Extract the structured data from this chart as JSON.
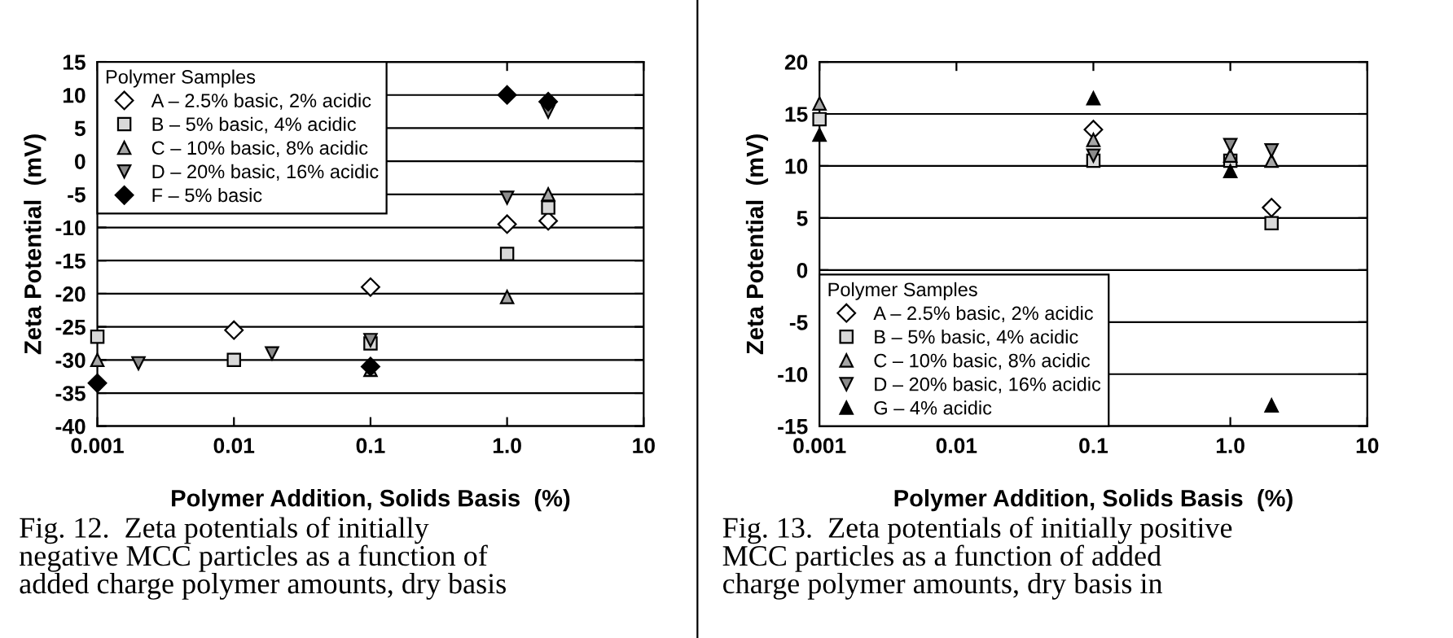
{
  "chart_data": [
    {
      "type": "scatter",
      "xlabel": "Polymer Addition, Solids Basis  (%)",
      "ylabel": "Zeta Potential  (mV)",
      "legend_title": "Polymer Samples",
      "legend": "top left",
      "log": "x",
      "grid": "y",
      "xlim": [
        0.001,
        10
      ],
      "xticks": [
        0.001,
        0.01,
        0.1,
        {
          "value": 1,
          "label": "1.0"
        },
        10
      ],
      "ylim": [
        -40,
        15
      ],
      "yticks": [
        -40,
        -35,
        -30,
        -25,
        -20,
        -15,
        -10,
        -5,
        0,
        5,
        10,
        15
      ],
      "series": [
        {
          "name": "A – 2.5% basic, 2% acidic",
          "color": "#ffffff",
          "marker": "diamond",
          "x": [
            0.01,
            0.1,
            1,
            2
          ],
          "values": [
            -25.5,
            -19,
            -9.5,
            -9
          ]
        },
        {
          "name": "B – 5% basic, 4% acidic",
          "color": "#d9d9d9",
          "marker": "square",
          "x": [
            0.001,
            0.01,
            0.1,
            1,
            2
          ],
          "values": [
            -26.5,
            -30,
            -27.5,
            -14,
            -7
          ]
        },
        {
          "name": "C – 10% basic, 8% acidic",
          "color": "#a6a6a6",
          "marker": "triangle",
          "x": [
            0.001,
            0.1,
            1,
            2
          ],
          "values": [
            -30,
            -31.5,
            -20.5,
            -5
          ]
        },
        {
          "name": "D – 20% basic, 16% acidic",
          "color": "#8c8c8c",
          "marker": "triangle_down",
          "x": [
            0.002,
            0.019,
            0.1,
            1,
            2
          ],
          "values": [
            -30.5,
            -29,
            -27,
            -5.5,
            7.5
          ]
        },
        {
          "name": "F – 5% basic",
          "color": "#000000",
          "marker": "diamond",
          "x": [
            0.001,
            0.1,
            1,
            2
          ],
          "values": [
            -33.5,
            -31,
            10,
            9
          ]
        }
      ],
      "annotations": [
        "Fig. 12.  Zeta potentials of initially\nnegative MCC particles as a function of\nadded charge polymer amounts, dry basis"
      ]
    },
    {
      "type": "scatter",
      "xlabel": "Polymer Addition, Solids Basis  (%)",
      "ylabel": "Zeta Potential  (mV)",
      "legend_title": "Polymer Samples",
      "legend": "bottom left",
      "log": "x",
      "grid": "y",
      "xlim": [
        0.001,
        10
      ],
      "xticks": [
        0.001,
        0.01,
        0.1,
        {
          "value": 1,
          "label": "1.0"
        },
        10
      ],
      "ylim": [
        -15,
        20
      ],
      "yticks": [
        -15,
        -10,
        -5,
        0,
        5,
        10,
        15,
        20
      ],
      "series": [
        {
          "name": "A – 2.5% basic, 2% acidic",
          "color": "#ffffff",
          "marker": "diamond",
          "x": [
            0.1,
            2
          ],
          "values": [
            13.5,
            6
          ]
        },
        {
          "name": "B – 5% basic, 4% acidic",
          "color": "#d9d9d9",
          "marker": "square",
          "x": [
            0.001,
            0.1,
            1,
            2
          ],
          "values": [
            14.5,
            10.5,
            10.5,
            4.5
          ]
        },
        {
          "name": "C – 10% basic, 8% acidic",
          "color": "#a6a6a6",
          "marker": "triangle",
          "x": [
            0.001,
            0.1,
            1,
            2
          ],
          "values": [
            16,
            12.5,
            11,
            10.5
          ]
        },
        {
          "name": "D – 20% basic, 16% acidic",
          "color": "#8c8c8c",
          "marker": "triangle_down",
          "x": [
            0.1,
            1,
            2
          ],
          "values": [
            11,
            12,
            11.5
          ]
        },
        {
          "name": "G – 4% acidic",
          "color": "#000000",
          "marker": "triangle",
          "x": [
            0.001,
            0.1,
            1,
            2
          ],
          "values": [
            13,
            16.5,
            9.5,
            -13
          ]
        }
      ],
      "annotations": [
        "Fig. 13.  Zeta potentials of initially positive\nMCC particles as a function of added\ncharge polymer amounts, dry basis in"
      ]
    }
  ]
}
